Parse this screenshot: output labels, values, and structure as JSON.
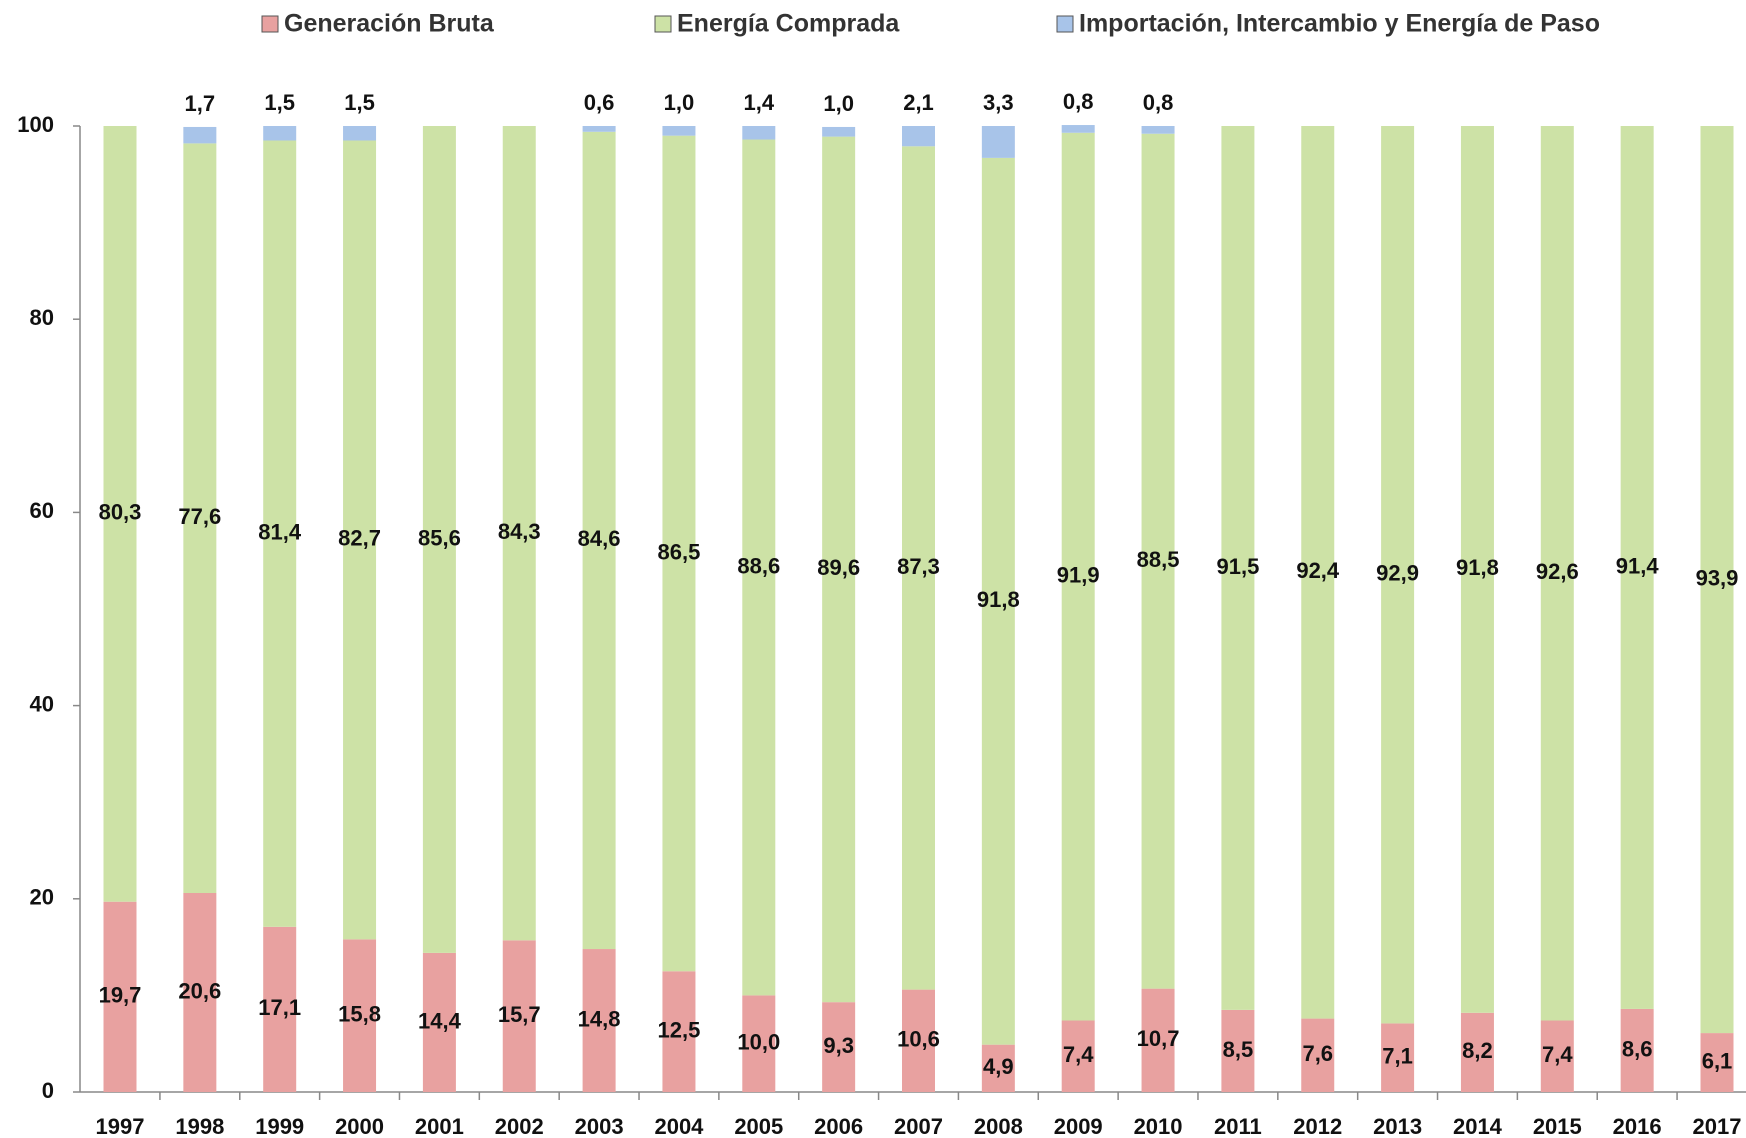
{
  "chart_data": {
    "type": "stacked_bar",
    "categories": [
      "1997",
      "1998",
      "1999",
      "2000",
      "2001",
      "2002",
      "2003",
      "2004",
      "2005",
      "2006",
      "2007",
      "2008",
      "2009",
      "2010",
      "2011",
      "2012",
      "2013",
      "2014",
      "2015",
      "2016",
      "2017"
    ],
    "series": [
      {
        "name": "Generación Bruta",
        "color": "#e8a1a0",
        "values": [
          19.7,
          20.6,
          17.1,
          15.8,
          14.4,
          15.7,
          14.8,
          12.5,
          10.0,
          9.3,
          10.6,
          4.9,
          7.4,
          10.7,
          8.5,
          7.6,
          7.1,
          8.2,
          7.4,
          8.6,
          6.1
        ],
        "value_labels": [
          "19,7",
          "20,6",
          "17,1",
          "15,8",
          "14,4",
          "15,7",
          "14,8",
          "12,5",
          "10,0",
          "9,3",
          "10,6",
          "4,9",
          "7,4",
          "10,7",
          "8,5",
          "7,6",
          "7,1",
          "8,2",
          "7,4",
          "8,6",
          "6,1"
        ]
      },
      {
        "name": "Energía Comprada",
        "color": "#cde2a6",
        "values": [
          80.3,
          77.6,
          81.4,
          82.7,
          85.6,
          84.3,
          84.6,
          86.5,
          88.6,
          89.6,
          87.3,
          91.8,
          91.9,
          88.5,
          91.5,
          92.4,
          92.9,
          91.8,
          92.6,
          91.4,
          93.9
        ],
        "value_labels": [
          "80,3",
          "77,6",
          "81,4",
          "82,7",
          "85,6",
          "84,3",
          "84,6",
          "86,5",
          "88,6",
          "89,6",
          "87,3",
          "91,8",
          "91,9",
          "88,5",
          "91,5",
          "92,4",
          "92,9",
          "91,8",
          "92,6",
          "91,4",
          "93,9"
        ]
      },
      {
        "name": "Importación, Intercambio y Energía de Paso",
        "color": "#a8c4e9",
        "values": [
          null,
          1.7,
          1.5,
          1.5,
          null,
          null,
          0.6,
          1.0,
          1.4,
          1.0,
          2.1,
          3.3,
          0.8,
          0.8,
          null,
          null,
          null,
          null,
          null,
          null,
          null
        ],
        "value_labels": [
          null,
          "1,7",
          "1,5",
          "1,5",
          null,
          null,
          "0,6",
          "1,0",
          "1,4",
          "1,0",
          "2,1",
          "3,3",
          "0,8",
          "0,8",
          null,
          null,
          null,
          null,
          null,
          null,
          null
        ]
      }
    ],
    "ylim": [
      0,
      100
    ],
    "yticks": [
      0,
      20,
      40,
      60,
      80,
      100
    ],
    "legend": "top"
  }
}
